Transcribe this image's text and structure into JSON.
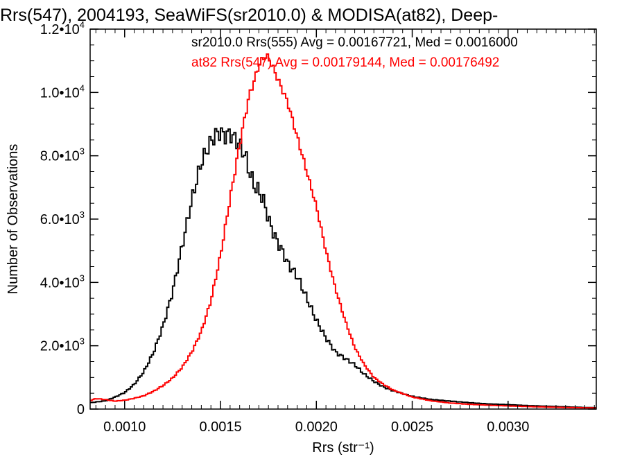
{
  "chart_data": {
    "type": "line",
    "title": "Rrs(547), 2004193, SeaWiFS(sr2010.0) & MODISA(at82), Deep-",
    "xlabel": "Rrs (str⁻¹)",
    "ylabel": "Number of Observations",
    "xlim": [
      0.00082,
      0.00346
    ],
    "ylim": [
      0,
      12000
    ],
    "x_ticks": [
      {
        "value": 0.001,
        "label": "0.0010"
      },
      {
        "value": 0.0015,
        "label": "0.0015"
      },
      {
        "value": 0.002,
        "label": "0.0020"
      },
      {
        "value": 0.0025,
        "label": "0.0025"
      },
      {
        "value": 0.003,
        "label": "0.0030"
      }
    ],
    "y_ticks": [
      {
        "value": 0,
        "mant": "0",
        "exp": ""
      },
      {
        "value": 2000,
        "mant": "2.0•10",
        "exp": "3"
      },
      {
        "value": 4000,
        "mant": "4.0•10",
        "exp": "3"
      },
      {
        "value": 6000,
        "mant": "6.0•10",
        "exp": "3"
      },
      {
        "value": 8000,
        "mant": "8.0•10",
        "exp": "3"
      },
      {
        "value": 10000,
        "mant": "1.0•10",
        "exp": "4"
      },
      {
        "value": 12000,
        "mant": "1.2•10",
        "exp": "4"
      }
    ],
    "grid": false,
    "legend_position": "top-right",
    "series": [
      {
        "name": "sr2010.0 Rrs(555) Avg = 0.00167721, Med = 0.0016000",
        "color": "#000000",
        "style": "step",
        "points": [
          [
            0.00082,
            200
          ],
          [
            0.0009,
            260
          ],
          [
            0.00095,
            380
          ],
          [
            0.001,
            520
          ],
          [
            0.00105,
            780
          ],
          [
            0.0011,
            1180
          ],
          [
            0.00115,
            1780
          ],
          [
            0.0012,
            2620
          ],
          [
            0.00125,
            3700
          ],
          [
            0.0013,
            5150
          ],
          [
            0.00135,
            6600
          ],
          [
            0.0014,
            7800
          ],
          [
            0.00145,
            8450
          ],
          [
            0.00148,
            8700
          ],
          [
            0.0015,
            8750
          ],
          [
            0.00152,
            8620
          ],
          [
            0.00155,
            8700
          ],
          [
            0.00158,
            8500
          ],
          [
            0.0016,
            8350
          ],
          [
            0.00163,
            8000
          ],
          [
            0.00165,
            7500
          ],
          [
            0.00168,
            7000
          ],
          [
            0.0017,
            6900
          ],
          [
            0.00173,
            6500
          ],
          [
            0.00175,
            6000
          ],
          [
            0.00178,
            5500
          ],
          [
            0.0018,
            5250
          ],
          [
            0.00183,
            4900
          ],
          [
            0.00185,
            4600
          ],
          [
            0.0019,
            4200
          ],
          [
            0.00195,
            3500
          ],
          [
            0.002,
            2800
          ],
          [
            0.00205,
            2250
          ],
          [
            0.0021,
            1800
          ],
          [
            0.00215,
            1600
          ],
          [
            0.0022,
            1400
          ],
          [
            0.00225,
            1100
          ],
          [
            0.0023,
            880
          ],
          [
            0.00235,
            700
          ],
          [
            0.0024,
            580
          ],
          [
            0.0025,
            400
          ],
          [
            0.0026,
            300
          ],
          [
            0.0027,
            250
          ],
          [
            0.0028,
            200
          ],
          [
            0.0029,
            160
          ],
          [
            0.003,
            140
          ],
          [
            0.0031,
            110
          ],
          [
            0.0032,
            90
          ],
          [
            0.0033,
            70
          ],
          [
            0.0034,
            50
          ],
          [
            0.00346,
            45
          ]
        ]
      },
      {
        "name": "at82 Rrs(547) Avg = 0.00179144, Med = 0.00176492",
        "color": "#ff0000",
        "style": "step",
        "points": [
          [
            0.00082,
            270
          ],
          [
            0.00085,
            330
          ],
          [
            0.0009,
            300
          ],
          [
            0.00095,
            250
          ],
          [
            0.001,
            280
          ],
          [
            0.00105,
            340
          ],
          [
            0.0011,
            420
          ],
          [
            0.00115,
            560
          ],
          [
            0.0012,
            740
          ],
          [
            0.00125,
            980
          ],
          [
            0.0013,
            1320
          ],
          [
            0.00135,
            1800
          ],
          [
            0.0014,
            2450
          ],
          [
            0.00145,
            3420
          ],
          [
            0.0015,
            4850
          ],
          [
            0.00155,
            6650
          ],
          [
            0.0016,
            8350
          ],
          [
            0.00163,
            9300
          ],
          [
            0.00165,
            9900
          ],
          [
            0.00168,
            10450
          ],
          [
            0.0017,
            10850
          ],
          [
            0.00173,
            11150
          ],
          [
            0.00175,
            11100
          ],
          [
            0.00178,
            10700
          ],
          [
            0.0018,
            10400
          ],
          [
            0.00185,
            9700
          ],
          [
            0.0019,
            8600
          ],
          [
            0.00195,
            7500
          ],
          [
            0.002,
            6400
          ],
          [
            0.00205,
            5000
          ],
          [
            0.0021,
            3800
          ],
          [
            0.00215,
            2800
          ],
          [
            0.0022,
            1950
          ],
          [
            0.00225,
            1400
          ],
          [
            0.0023,
            1000
          ],
          [
            0.00235,
            780
          ],
          [
            0.0024,
            600
          ],
          [
            0.0025,
            380
          ],
          [
            0.0026,
            260
          ],
          [
            0.0027,
            190
          ],
          [
            0.0028,
            150
          ],
          [
            0.0029,
            120
          ],
          [
            0.003,
            100
          ],
          [
            0.0031,
            80
          ],
          [
            0.0032,
            65
          ],
          [
            0.0033,
            50
          ],
          [
            0.0034,
            40
          ],
          [
            0.00346,
            35
          ]
        ]
      }
    ]
  }
}
